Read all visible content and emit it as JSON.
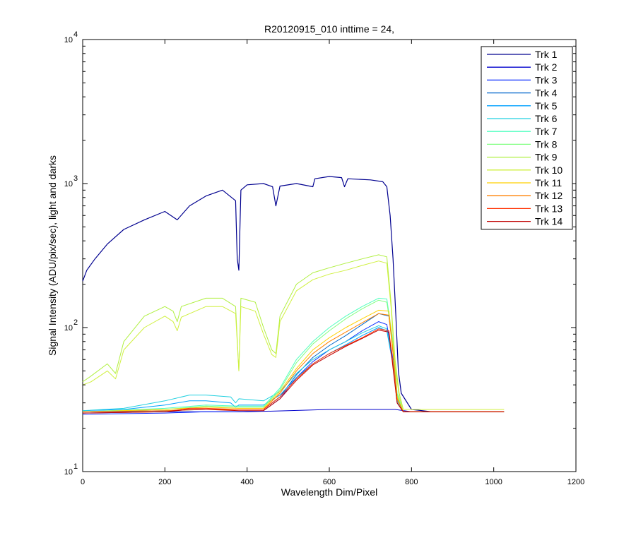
{
  "chart_data": {
    "type": "line",
    "title": "R20120915_010 inttime = 24,",
    "xlabel": "Wavelength Dim/Pixel",
    "ylabel": "Signal Intensity (ADU/pix/sec), light and darks",
    "xlim": [
      0,
      1200
    ],
    "ylim": [
      10,
      10000
    ],
    "y_scale": "log",
    "grid": false,
    "legend_position": "top-right",
    "x_ticks": [
      "0",
      "200",
      "400",
      "600",
      "800",
      "1000",
      "1200"
    ],
    "y_ticks": [
      {
        "base": "10",
        "exp": "1",
        "value": 10
      },
      {
        "base": "10",
        "exp": "2",
        "value": 100
      },
      {
        "base": "10",
        "exp": "3",
        "value": 1000
      },
      {
        "base": "10",
        "exp": "4",
        "value": 10000
      }
    ],
    "series": [
      {
        "name": "Trk 1",
        "color": "#00008F",
        "points": [
          [
            0,
            210
          ],
          [
            10,
            250
          ],
          [
            30,
            300
          ],
          [
            60,
            380
          ],
          [
            100,
            480
          ],
          [
            150,
            560
          ],
          [
            200,
            640
          ],
          [
            230,
            560
          ],
          [
            260,
            700
          ],
          [
            300,
            820
          ],
          [
            340,
            900
          ],
          [
            372,
            760
          ],
          [
            376,
            300
          ],
          [
            380,
            250
          ],
          [
            385,
            900
          ],
          [
            400,
            980
          ],
          [
            440,
            1000
          ],
          [
            462,
            950
          ],
          [
            470,
            700
          ],
          [
            480,
            960
          ],
          [
            520,
            1000
          ],
          [
            560,
            950
          ],
          [
            565,
            1080
          ],
          [
            600,
            1120
          ],
          [
            630,
            1100
          ],
          [
            637,
            950
          ],
          [
            645,
            1080
          ],
          [
            700,
            1060
          ],
          [
            730,
            1030
          ],
          [
            740,
            950
          ],
          [
            748,
            600
          ],
          [
            755,
            300
          ],
          [
            762,
            120
          ],
          [
            768,
            50
          ],
          [
            775,
            35
          ],
          [
            800,
            27
          ],
          [
            850,
            26
          ],
          [
            1025,
            26
          ]
        ]
      },
      {
        "name": "Trk 2",
        "color": "#0000CD",
        "points": [
          [
            0,
            26
          ],
          [
            350,
            26
          ],
          [
            400,
            26
          ],
          [
            500,
            26.5
          ],
          [
            600,
            27
          ],
          [
            700,
            27
          ],
          [
            760,
            27
          ],
          [
            800,
            26
          ],
          [
            900,
            26
          ],
          [
            1025,
            26
          ]
        ]
      },
      {
        "name": "Trk 3",
        "color": "#0A2DFF",
        "points": [
          [
            0,
            25
          ],
          [
            200,
            25.5
          ],
          [
            300,
            26
          ],
          [
            380,
            26
          ],
          [
            440,
            26.5
          ],
          [
            480,
            32
          ],
          [
            520,
            45
          ],
          [
            560,
            58
          ],
          [
            600,
            70
          ],
          [
            640,
            80
          ],
          [
            680,
            95
          ],
          [
            720,
            110
          ],
          [
            740,
            105
          ],
          [
            755,
            60
          ],
          [
            765,
            30
          ],
          [
            780,
            26
          ],
          [
            1025,
            26
          ]
        ]
      },
      {
        "name": "Trk 4",
        "color": "#0066CC",
        "points": [
          [
            0,
            26
          ],
          [
            200,
            26.5
          ],
          [
            300,
            27
          ],
          [
            380,
            27
          ],
          [
            440,
            27
          ],
          [
            480,
            33
          ],
          [
            520,
            47
          ],
          [
            560,
            62
          ],
          [
            600,
            75
          ],
          [
            640,
            88
          ],
          [
            680,
            105
          ],
          [
            720,
            125
          ],
          [
            745,
            120
          ],
          [
            755,
            70
          ],
          [
            765,
            32
          ],
          [
            780,
            26
          ],
          [
            1025,
            26
          ]
        ]
      },
      {
        "name": "Trk 5",
        "color": "#00A0FF",
        "points": [
          [
            0,
            26.5
          ],
          [
            100,
            27
          ],
          [
            200,
            29
          ],
          [
            260,
            31
          ],
          [
            300,
            31
          ],
          [
            360,
            30
          ],
          [
            372,
            28
          ],
          [
            380,
            29
          ],
          [
            440,
            29
          ],
          [
            480,
            34
          ],
          [
            520,
            45
          ],
          [
            560,
            56
          ],
          [
            600,
            66
          ],
          [
            640,
            76
          ],
          [
            680,
            88
          ],
          [
            720,
            100
          ],
          [
            740,
            95
          ],
          [
            755,
            55
          ],
          [
            765,
            30
          ],
          [
            780,
            26
          ],
          [
            1025,
            26
          ]
        ]
      },
      {
        "name": "Trk 6",
        "color": "#20D0E0",
        "points": [
          [
            0,
            26.5
          ],
          [
            100,
            27.5
          ],
          [
            200,
            31
          ],
          [
            260,
            34
          ],
          [
            300,
            34
          ],
          [
            360,
            33
          ],
          [
            372,
            30
          ],
          [
            380,
            32
          ],
          [
            440,
            31
          ],
          [
            480,
            36
          ],
          [
            520,
            48
          ],
          [
            560,
            60
          ],
          [
            600,
            70
          ],
          [
            640,
            80
          ],
          [
            680,
            92
          ],
          [
            720,
            103
          ],
          [
            740,
            98
          ],
          [
            755,
            58
          ],
          [
            765,
            31
          ],
          [
            780,
            26
          ],
          [
            1025,
            26
          ]
        ]
      },
      {
        "name": "Trk 7",
        "color": "#50FFC0",
        "points": [
          [
            0,
            26
          ],
          [
            200,
            27.5
          ],
          [
            300,
            29
          ],
          [
            380,
            28.5
          ],
          [
            440,
            28.5
          ],
          [
            480,
            38
          ],
          [
            520,
            60
          ],
          [
            560,
            80
          ],
          [
            600,
            100
          ],
          [
            640,
            120
          ],
          [
            680,
            140
          ],
          [
            720,
            160
          ],
          [
            740,
            158
          ],
          [
            755,
            80
          ],
          [
            765,
            35
          ],
          [
            780,
            26
          ],
          [
            1025,
            26
          ]
        ]
      },
      {
        "name": "Trk 8",
        "color": "#80FF80",
        "points": [
          [
            0,
            26
          ],
          [
            200,
            27
          ],
          [
            300,
            28.5
          ],
          [
            380,
            28
          ],
          [
            440,
            28
          ],
          [
            480,
            37
          ],
          [
            520,
            57
          ],
          [
            560,
            77
          ],
          [
            600,
            95
          ],
          [
            640,
            115
          ],
          [
            680,
            135
          ],
          [
            720,
            155
          ],
          [
            740,
            150
          ],
          [
            755,
            78
          ],
          [
            765,
            34
          ],
          [
            780,
            26
          ],
          [
            1025,
            26
          ]
        ]
      },
      {
        "name": "Trk 9",
        "color": "#B0F040",
        "points": [
          [
            0,
            42
          ],
          [
            20,
            46
          ],
          [
            60,
            56
          ],
          [
            80,
            48
          ],
          [
            100,
            80
          ],
          [
            150,
            120
          ],
          [
            200,
            140
          ],
          [
            220,
            130
          ],
          [
            230,
            110
          ],
          [
            240,
            140
          ],
          [
            300,
            160
          ],
          [
            340,
            160
          ],
          [
            372,
            140
          ],
          [
            380,
            50
          ],
          [
            385,
            160
          ],
          [
            420,
            150
          ],
          [
            440,
            100
          ],
          [
            460,
            70
          ],
          [
            470,
            66
          ],
          [
            480,
            120
          ],
          [
            520,
            200
          ],
          [
            560,
            240
          ],
          [
            600,
            260
          ],
          [
            640,
            280
          ],
          [
            680,
            300
          ],
          [
            720,
            320
          ],
          [
            740,
            310
          ],
          [
            750,
            150
          ],
          [
            760,
            60
          ],
          [
            770,
            35
          ],
          [
            780,
            27
          ],
          [
            1025,
            27
          ]
        ]
      },
      {
        "name": "Trk 10",
        "color": "#D0F040",
        "points": [
          [
            0,
            40
          ],
          [
            20,
            42
          ],
          [
            60,
            50
          ],
          [
            80,
            44
          ],
          [
            100,
            70
          ],
          [
            150,
            100
          ],
          [
            200,
            120
          ],
          [
            220,
            110
          ],
          [
            230,
            95
          ],
          [
            240,
            118
          ],
          [
            300,
            140
          ],
          [
            340,
            140
          ],
          [
            372,
            125
          ],
          [
            380,
            50
          ],
          [
            385,
            140
          ],
          [
            420,
            130
          ],
          [
            440,
            90
          ],
          [
            460,
            65
          ],
          [
            470,
            62
          ],
          [
            480,
            110
          ],
          [
            520,
            180
          ],
          [
            560,
            215
          ],
          [
            600,
            235
          ],
          [
            640,
            250
          ],
          [
            680,
            270
          ],
          [
            720,
            290
          ],
          [
            740,
            280
          ],
          [
            750,
            140
          ],
          [
            760,
            55
          ],
          [
            770,
            33
          ],
          [
            780,
            27
          ],
          [
            1025,
            27
          ]
        ]
      },
      {
        "name": "Trk 11",
        "color": "#FFD000",
        "points": [
          [
            0,
            26
          ],
          [
            200,
            27
          ],
          [
            300,
            28
          ],
          [
            380,
            27.5
          ],
          [
            440,
            27.5
          ],
          [
            480,
            36
          ],
          [
            520,
            52
          ],
          [
            560,
            70
          ],
          [
            600,
            85
          ],
          [
            640,
            100
          ],
          [
            680,
            115
          ],
          [
            720,
            132
          ],
          [
            745,
            130
          ],
          [
            755,
            70
          ],
          [
            765,
            33
          ],
          [
            780,
            26
          ],
          [
            1025,
            26
          ]
        ]
      },
      {
        "name": "Trk 12",
        "color": "#FF8000",
        "points": [
          [
            0,
            26
          ],
          [
            200,
            26.5
          ],
          [
            300,
            27
          ],
          [
            380,
            27
          ],
          [
            440,
            27
          ],
          [
            480,
            35
          ],
          [
            520,
            50
          ],
          [
            560,
            66
          ],
          [
            600,
            80
          ],
          [
            640,
            93
          ],
          [
            680,
            108
          ],
          [
            720,
            125
          ],
          [
            745,
            122
          ],
          [
            755,
            66
          ],
          [
            765,
            32
          ],
          [
            780,
            26
          ],
          [
            1025,
            26
          ]
        ]
      },
      {
        "name": "Trk 13",
        "color": "#FF3000",
        "points": [
          [
            0,
            25.5
          ],
          [
            200,
            26
          ],
          [
            260,
            27.5
          ],
          [
            300,
            27.5
          ],
          [
            380,
            27
          ],
          [
            440,
            27
          ],
          [
            480,
            33
          ],
          [
            520,
            44
          ],
          [
            560,
            56
          ],
          [
            600,
            66
          ],
          [
            640,
            75
          ],
          [
            680,
            85
          ],
          [
            720,
            98
          ],
          [
            745,
            95
          ],
          [
            755,
            55
          ],
          [
            765,
            30
          ],
          [
            780,
            26
          ],
          [
            1025,
            26
          ]
        ]
      },
      {
        "name": "Trk 14",
        "color": "#C00000",
        "points": [
          [
            0,
            25.5
          ],
          [
            200,
            26
          ],
          [
            260,
            27
          ],
          [
            300,
            27
          ],
          [
            380,
            26.5
          ],
          [
            440,
            26.5
          ],
          [
            480,
            32
          ],
          [
            520,
            43
          ],
          [
            560,
            55
          ],
          [
            600,
            64
          ],
          [
            640,
            74
          ],
          [
            680,
            84
          ],
          [
            720,
            96
          ],
          [
            745,
            93
          ],
          [
            755,
            52
          ],
          [
            765,
            30
          ],
          [
            780,
            26
          ],
          [
            1025,
            26
          ]
        ]
      }
    ]
  }
}
